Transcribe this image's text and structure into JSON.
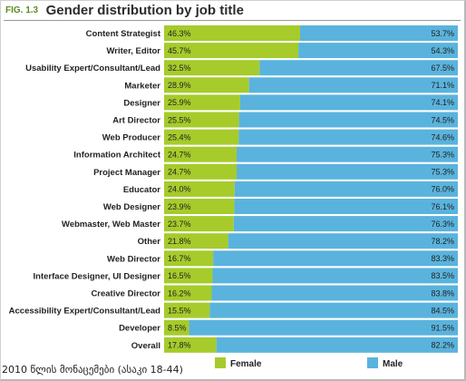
{
  "header": {
    "fig_label": "FIG. 1.3",
    "title": "Gender distribution by job title"
  },
  "caption": "2010 წლის მონაცემები (ასაკი 18-44)",
  "colors": {
    "female": "#a6cb2b",
    "male": "#5ab3dd",
    "background": "#ffffff"
  },
  "chart_data": {
    "type": "bar",
    "orientation": "horizontal",
    "stacked": true,
    "title": "Gender distribution by job title",
    "categories": [
      "Content Strategist",
      "Writer, Editor",
      "Usability Expert/Consultant/Lead",
      "Marketer",
      "Designer",
      "Art Director",
      "Web Producer",
      "Information Architect",
      "Project Manager",
      "Educator",
      "Web Designer",
      "Webmaster, Web Master",
      "Other",
      "Web Director",
      "Interface Designer, UI Designer",
      "Creative Director",
      "Accessibility Expert/Consultant/Lead",
      "Developer",
      "Overall"
    ],
    "series": [
      {
        "name": "Female",
        "values": [
          46.3,
          45.7,
          32.5,
          28.9,
          25.9,
          25.5,
          25.4,
          24.7,
          24.7,
          24.0,
          23.9,
          23.7,
          21.8,
          16.7,
          16.5,
          16.2,
          15.5,
          8.5,
          17.8
        ],
        "labels": [
          "46.3%",
          "45.7%",
          "32.5%",
          "28.9%",
          "25.9%",
          "25.5%",
          "25.4%",
          "24.7%",
          "24.7%",
          "24.0%",
          "23.9%",
          "23.7%",
          "21.8%",
          "16.7%",
          "16.5%",
          "16.2%",
          "15.5%",
          "8.5%",
          "17.8%"
        ]
      },
      {
        "name": "Male",
        "values": [
          53.7,
          54.3,
          67.5,
          71.1,
          74.1,
          74.5,
          74.6,
          75.3,
          75.3,
          76.0,
          76.1,
          76.3,
          78.2,
          83.3,
          83.5,
          83.8,
          84.5,
          91.5,
          82.2
        ],
        "labels": [
          "53.7%",
          "54.3%",
          "67.5%",
          "71.1%",
          "74.1%",
          "74.5%",
          "74.6%",
          "75.3%",
          "75.3%",
          "76.0%",
          "76.1%",
          "76.3%",
          "78.2%",
          "83.3%",
          "83.5%",
          "83.8%",
          "84.5%",
          "91.5%",
          "82.2%"
        ]
      }
    ],
    "xlim": [
      0,
      100
    ],
    "legend": {
      "position": "bottom",
      "items": [
        "Female",
        "Male"
      ]
    }
  }
}
